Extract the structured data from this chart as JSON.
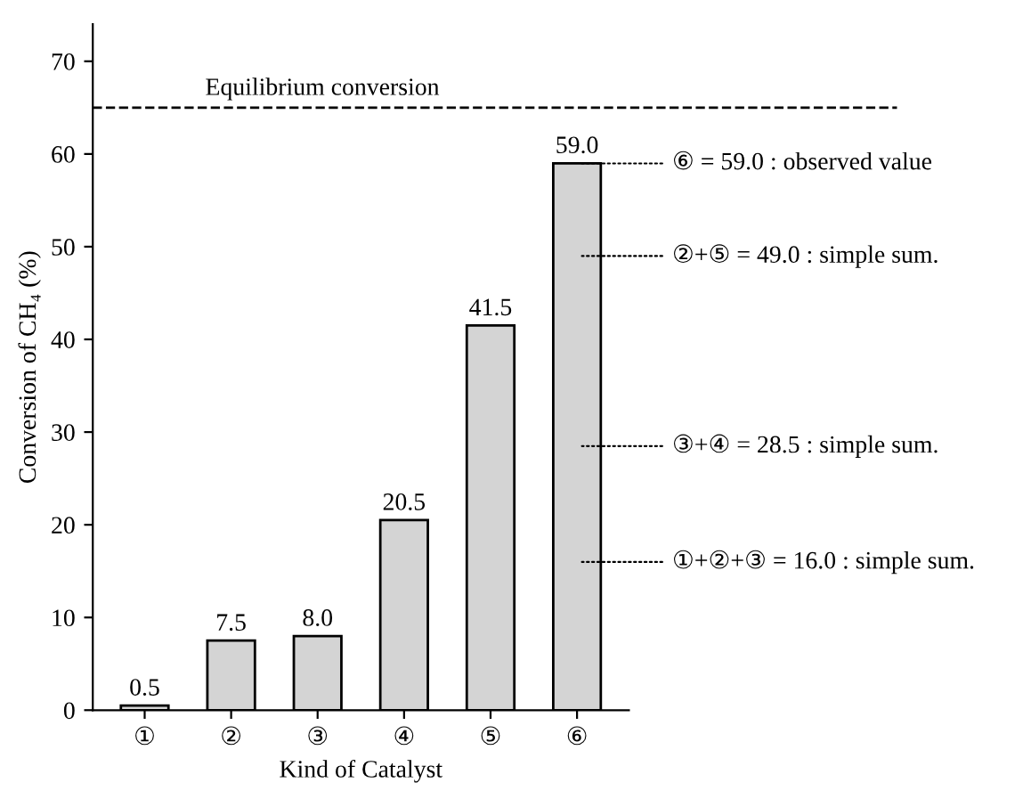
{
  "chart_data": {
    "type": "bar",
    "xlabel": "Kind of Catalyst",
    "ylabel": "Conversion of CH₄ (%)",
    "categories": [
      "①",
      "②",
      "③",
      "④",
      "⑤",
      "⑥"
    ],
    "values": [
      0.5,
      7.5,
      8.0,
      20.5,
      41.5,
      59.0
    ],
    "value_labels": [
      "0.5",
      "7.5",
      "8.0",
      "20.5",
      "41.5",
      "59.0"
    ],
    "color": "#d4d4d4",
    "ylim": [
      0,
      74
    ],
    "yticks": [
      0,
      10,
      20,
      30,
      40,
      50,
      60,
      70
    ],
    "grid": false,
    "ref_lines": [
      {
        "axis": "y",
        "value": 65,
        "label": "Equilibrium conversion",
        "line_style": "dashed",
        "color": "#000000"
      }
    ],
    "annotations": [
      "⑥ = 59.0 : observed value",
      "②+⑤ = 49.0 : simple sum.",
      "③+④ = 28.5 : simple sum.",
      "①+②+③ = 16.0 : simple sum."
    ]
  }
}
